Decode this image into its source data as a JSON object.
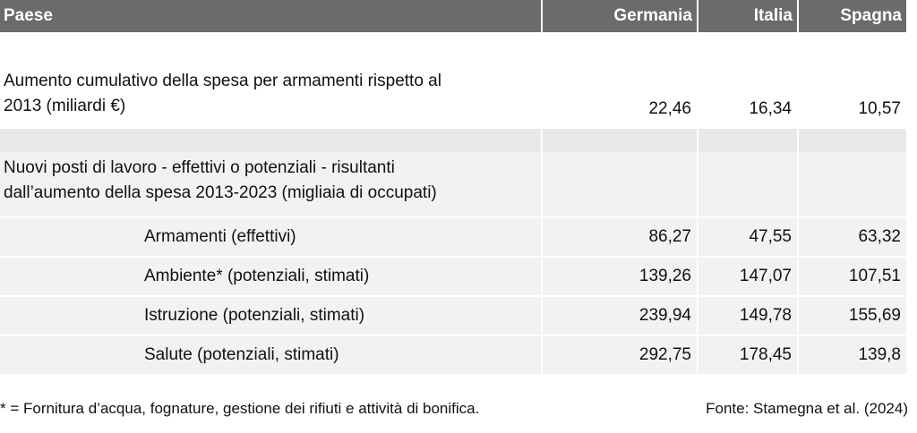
{
  "header": {
    "col0": "Paese",
    "countries": [
      "Germania",
      "Italia",
      "Spagna"
    ]
  },
  "spending": {
    "label_line1": "Aumento cumulativo della spesa per armamenti rispetto al",
    "label_line2": "2013 (miliardi €)",
    "values": [
      "22,46",
      "16,34",
      "10,57"
    ]
  },
  "jobs": {
    "label_line1": "Nuovi posti di lavoro - effettivi o potenziali - risultanti",
    "label_line2": "dall’aumento della spesa 2013-2023 (migliaia di occupati)"
  },
  "rows": [
    {
      "label": "Armamenti (effettivi)",
      "values": [
        "86,27",
        "47,55",
        "63,32"
      ]
    },
    {
      "label": "Ambiente* (potenziali, stimati)",
      "values": [
        "139,26",
        "147,07",
        "107,51"
      ]
    },
    {
      "label": "Istruzione (potenziali, stimati)",
      "values": [
        "239,94",
        "149,78",
        "155,69"
      ]
    },
    {
      "label": "Salute (potenziali, stimati)",
      "values": [
        "292,75",
        "178,45",
        "139,8"
      ]
    }
  ],
  "footnote": "* = Fornitura d’acqua, fognature, gestione dei rifiuti e attività di bonifica.",
  "source": "Fonte: Stamegna et al. (2024)"
}
